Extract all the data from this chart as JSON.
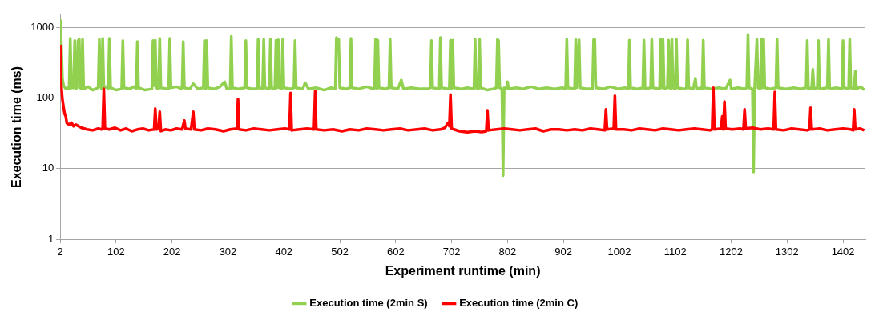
{
  "chart_data": {
    "type": "line",
    "xlabel": "Experiment runtime (min)",
    "ylabel": "Execution time (ms)",
    "xlim": [
      2,
      1442
    ],
    "xticks": [
      2,
      102,
      202,
      302,
      402,
      502,
      602,
      702,
      802,
      902,
      1002,
      1102,
      1202,
      1302,
      1402
    ],
    "ylim": [
      1,
      1500
    ],
    "yticks": [
      1,
      10,
      100,
      1000
    ],
    "log": "y",
    "grid": "y",
    "legend": "bottom",
    "marker": "none",
    "line_style": "solid",
    "series": [
      {
        "name": "Execution time (2min S)",
        "color": "#92d050",
        "x": [
          2,
          4,
          6,
          8,
          12,
          16,
          18,
          20,
          22,
          26,
          28,
          30,
          32,
          34,
          36,
          38,
          40,
          42,
          44,
          52,
          60,
          70,
          72,
          74,
          76,
          78,
          80,
          84,
          88,
          90,
          92,
          102,
          112,
          114,
          116,
          126,
          134,
          138,
          140,
          142,
          154,
          166,
          168,
          170,
          172,
          174,
          178,
          180,
          182,
          194,
          196,
          198,
          200,
          210,
          220,
          222,
          224,
          234,
          240,
          248,
          258,
          260,
          262,
          264,
          266,
          278,
          288,
          296,
          300,
          306,
          308,
          310,
          320,
          332,
          334,
          336,
          346,
          354,
          356,
          358,
          364,
          366,
          368,
          376,
          378,
          380,
          386,
          388,
          390,
          392,
          394,
          398,
          400,
          402,
          414,
          420,
          422,
          424,
          436,
          440,
          446,
          460,
          474,
          486,
          494,
          496,
          498,
          500,
          502,
          514,
          520,
          522,
          524,
          536,
          550,
          562,
          564,
          566,
          568,
          570,
          572,
          584,
          590,
          592,
          594,
          606,
          612,
          616,
          630,
          646,
          660,
          664,
          666,
          668,
          680,
          682,
          684,
          696,
          698,
          700,
          702,
          704,
          706,
          720,
          730,
          742,
          744,
          746,
          750,
          752,
          754,
          766,
          776,
          782,
          784,
          786,
          788,
          792,
          794,
          796,
          800,
          802,
          804,
          818,
          830,
          844,
          858,
          872,
          886,
          900,
          906,
          908,
          910,
          922,
          924,
          926,
          930,
          932,
          944,
          954,
          956,
          958,
          960,
          974,
          986,
          1000,
          1012,
          1018,
          1020,
          1022,
          1034,
          1044,
          1046,
          1048,
          1058,
          1060,
          1062,
          1074,
          1076,
          1078,
          1080,
          1082,
          1088,
          1090,
          1092,
          1094,
          1096,
          1098,
          1102,
          1104,
          1106,
          1118,
          1122,
          1124,
          1126,
          1134,
          1138,
          1140,
          1148,
          1150,
          1152,
          1154,
          1166,
          1180,
          1192,
          1200,
          1202,
          1214,
          1226,
          1230,
          1232,
          1234,
          1240,
          1242,
          1244,
          1248,
          1250,
          1254,
          1256,
          1258,
          1260,
          1262,
          1272,
          1282,
          1284,
          1286,
          1300,
          1314,
          1326,
          1336,
          1338,
          1340,
          1346,
          1348,
          1350,
          1356,
          1358,
          1360,
          1374,
          1376,
          1378,
          1390,
          1400,
          1402,
          1404,
          1412,
          1414,
          1416,
          1422,
          1424,
          1426,
          1434,
          1440
        ],
        "values": [
          1300,
          600,
          190,
          150,
          135,
          140,
          135,
          700,
          140,
          140,
          650,
          135,
          140,
          650,
          680,
          140,
          135,
          680,
          135,
          145,
          130,
          140,
          680,
          150,
          135,
          700,
          140,
          145,
          135,
          700,
          140,
          130,
          135,
          650,
          140,
          135,
          145,
          135,
          630,
          140,
          130,
          135,
          650,
          150,
          660,
          140,
          135,
          700,
          140,
          135,
          135,
          700,
          140,
          145,
          135,
          630,
          140,
          135,
          160,
          135,
          140,
          650,
          135,
          650,
          140,
          135,
          145,
          170,
          135,
          135,
          750,
          140,
          135,
          140,
          650,
          140,
          135,
          135,
          680,
          140,
          135,
          680,
          140,
          135,
          680,
          140,
          135,
          660,
          140,
          670,
          140,
          135,
          680,
          140,
          135,
          140,
          650,
          140,
          135,
          165,
          135,
          140,
          130,
          140,
          135,
          720,
          650,
          680,
          140,
          135,
          140,
          700,
          140,
          135,
          145,
          135,
          140,
          680,
          135,
          660,
          140,
          135,
          140,
          680,
          140,
          135,
          180,
          135,
          140,
          135,
          135,
          140,
          650,
          140,
          135,
          720,
          140,
          135,
          140,
          660,
          135,
          660,
          140,
          135,
          140,
          135,
          680,
          140,
          135,
          680,
          140,
          130,
          135,
          140,
          680,
          650,
          140,
          135,
          8,
          140,
          135,
          170,
          135,
          140,
          135,
          145,
          135,
          140,
          135,
          140,
          135,
          680,
          140,
          135,
          680,
          140,
          670,
          140,
          135,
          135,
          670,
          680,
          140,
          135,
          145,
          135,
          140,
          135,
          660,
          140,
          135,
          140,
          660,
          135,
          140,
          680,
          140,
          135,
          680,
          140,
          680,
          135,
          140,
          660,
          140,
          135,
          680,
          140,
          135,
          680,
          140,
          135,
          135,
          670,
          140,
          135,
          190,
          135,
          140,
          135,
          660,
          140,
          135,
          140,
          135,
          180,
          135,
          140,
          135,
          140,
          800,
          140,
          135,
          9,
          140,
          680,
          140,
          135,
          680,
          140,
          680,
          140,
          135,
          140,
          680,
          140,
          135,
          140,
          135,
          140,
          650,
          135,
          140,
          255,
          135,
          140,
          650,
          135,
          140,
          680,
          135,
          140,
          135,
          650,
          140,
          135,
          680,
          140,
          135,
          240,
          135,
          145,
          130
        ]
      },
      {
        "name": "Execution time (2min C)",
        "color": "#ff0000",
        "x": [
          2,
          4,
          6,
          8,
          10,
          12,
          14,
          18,
          22,
          26,
          30,
          40,
          50,
          60,
          70,
          76,
          78,
          80,
          82,
          90,
          100,
          110,
          120,
          130,
          140,
          150,
          160,
          170,
          172,
          174,
          178,
          180,
          182,
          190,
          200,
          210,
          220,
          224,
          226,
          236,
          240,
          242,
          254,
          266,
          280,
          294,
          306,
          318,
          320,
          322,
          334,
          348,
          362,
          376,
          390,
          404,
          412,
          414,
          416,
          430,
          444,
          456,
          458,
          460,
          474,
          490,
          506,
          520,
          536,
          550,
          566,
          580,
          594,
          610,
          624,
          640,
          654,
          668,
          682,
          690,
          696,
          698,
          700,
          702,
          716,
          730,
          744,
          756,
          764,
          766,
          768,
          782,
          796,
          810,
          824,
          838,
          852,
          866,
          880,
          894,
          908,
          922,
          936,
          950,
          964,
          976,
          978,
          980,
          992,
          994,
          996,
          1010,
          1024,
          1038,
          1052,
          1066,
          1080,
          1094,
          1108,
          1122,
          1136,
          1150,
          1164,
          1168,
          1170,
          1172,
          1184,
          1186,
          1188,
          1190,
          1192,
          1204,
          1218,
          1224,
          1226,
          1228,
          1240,
          1254,
          1268,
          1278,
          1280,
          1282,
          1296,
          1310,
          1324,
          1338,
          1342,
          1344,
          1346,
          1360,
          1374,
          1388,
          1402,
          1416,
          1420,
          1422,
          1424,
          1432,
          1440
        ],
        "values": [
          570,
          150,
          95,
          75,
          60,
          55,
          44,
          42,
          45,
          40,
          42,
          38,
          36,
          35,
          37,
          36,
          37,
          135,
          37,
          36,
          38,
          35,
          37,
          34,
          36,
          37,
          35,
          36,
          71,
          36,
          37,
          64,
          34,
          36,
          35,
          37,
          36,
          48,
          37,
          36,
          64,
          36,
          35,
          37,
          36,
          34,
          36,
          37,
          97,
          36,
          35,
          37,
          36,
          35,
          36,
          37,
          36,
          118,
          35,
          36,
          37,
          36,
          125,
          36,
          35,
          36,
          34,
          36,
          35,
          37,
          36,
          35,
          36,
          37,
          35,
          36,
          37,
          35,
          36,
          38,
          45,
          40,
          112,
          37,
          34,
          33,
          34,
          33,
          34,
          67,
          35,
          36,
          37,
          36,
          35,
          36,
          37,
          34,
          36,
          36,
          35,
          36,
          35,
          37,
          36,
          35,
          69,
          36,
          37,
          108,
          36,
          36,
          35,
          37,
          36,
          35,
          37,
          36,
          35,
          36,
          37,
          36,
          35,
          36,
          140,
          36,
          37,
          55,
          36,
          89,
          37,
          36,
          37,
          36,
          69,
          37,
          38,
          36,
          37,
          36,
          122,
          36,
          35,
          37,
          36,
          35,
          36,
          73,
          36,
          37,
          35,
          36,
          37,
          36,
          35,
          69,
          36,
          37,
          35
        ]
      }
    ]
  }
}
